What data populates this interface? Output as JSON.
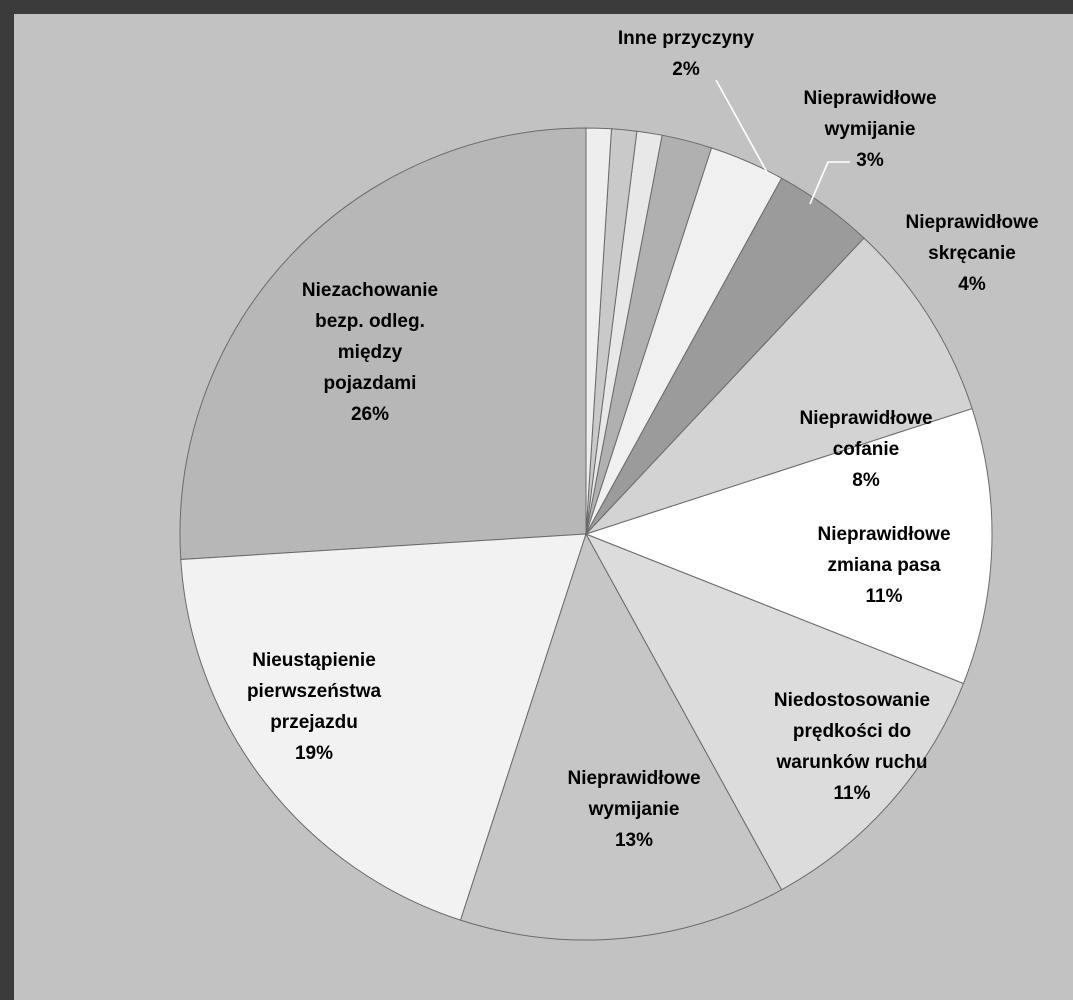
{
  "chart_data": {
    "type": "pie",
    "title": "",
    "slices": [
      {
        "label": [
          "Niezachowanie",
          "bezp. odleg.",
          "między",
          "pojazdami"
        ],
        "value_label": "26%",
        "value": 26,
        "color": "#b7b7b7"
      },
      {
        "label": [
          "Nieustąpienie",
          "pierwszeństwa",
          "przejazdu"
        ],
        "value_label": "19%",
        "value": 19,
        "color": "#f2f2f2"
      },
      {
        "label": [
          "Nieprawidłowe",
          "wymijanie"
        ],
        "value_label": "13%",
        "value": 13,
        "color": "#c6c6c6"
      },
      {
        "label": [
          "Niedostosowanie",
          "prędkości do",
          "warunków ruchu"
        ],
        "value_label": "11%",
        "value": 11,
        "color": "#dcdcdc"
      },
      {
        "label": [
          "Nieprawidłowe",
          "zmiana pasa"
        ],
        "value_label": "11%",
        "value": 11,
        "color": "#ffffff"
      },
      {
        "label": [
          "Nieprawidłowe",
          "cofanie"
        ],
        "value_label": "8%",
        "value": 8,
        "color": "#d3d3d3"
      },
      {
        "label": [
          "Nieprawidłowe",
          "skręcanie"
        ],
        "value_label": "4%",
        "value": 4,
        "color": "#9b9b9b"
      },
      {
        "label": [
          "Nieprawidłowe",
          "wymijanie"
        ],
        "value_label": "3%",
        "value": 3,
        "color": "#f0f0f0"
      },
      {
        "label": [
          "Inne przyczyny"
        ],
        "value_label": "2%",
        "value": 2,
        "color": "#b0b0b0"
      },
      {
        "label": [],
        "value_label": "",
        "value": 1,
        "color": "#e8e8e8"
      },
      {
        "label": [],
        "value_label": "",
        "value": 1,
        "color": "#c9c9c9"
      },
      {
        "label": [],
        "value_label": "",
        "value": 1,
        "color": "#eeeeee"
      }
    ],
    "legend": "none",
    "data_labels": "on-slice"
  }
}
